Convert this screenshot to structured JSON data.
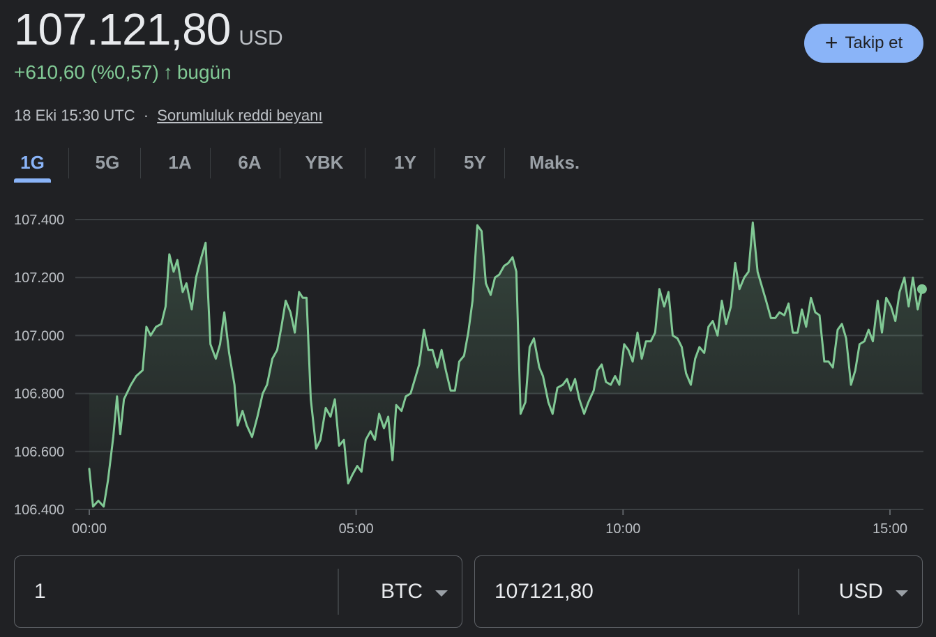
{
  "header": {
    "price": "107.121,80",
    "currency": "USD",
    "change": "+610,60 (%0,57)",
    "change_period": "bugün",
    "timestamp": "18 Eki 15:30 UTC",
    "separator": "·",
    "disclaimer_link": "Sorumluluk reddi beyanı",
    "follow_button": "Takip et",
    "plus_glyph": "+",
    "arrow_glyph": "↑"
  },
  "colors": {
    "accent": "#8ab4f8",
    "positive": "#81c995",
    "background": "#202124",
    "gridline": "#3c4043"
  },
  "tabs": [
    {
      "label": "1G",
      "active": true
    },
    {
      "label": "5G",
      "active": false
    },
    {
      "label": "1A",
      "active": false
    },
    {
      "label": "6A",
      "active": false
    },
    {
      "label": "YBK",
      "active": false
    },
    {
      "label": "1Y",
      "active": false
    },
    {
      "label": "5Y",
      "active": false
    },
    {
      "label": "Maks.",
      "active": false
    }
  ],
  "chart_data": {
    "type": "area",
    "x_unit": "hours (UTC) since 00:00",
    "x_range": [
      0,
      15.5
    ],
    "ylim": [
      106400,
      107400
    ],
    "y_ticks": [
      {
        "v": 107400,
        "label": "107.400"
      },
      {
        "v": 107200,
        "label": "107.200"
      },
      {
        "v": 107000,
        "label": "107.000"
      },
      {
        "v": 106800,
        "label": "106.800"
      },
      {
        "v": 106600,
        "label": "106.600"
      },
      {
        "v": 106400,
        "label": "106.400"
      }
    ],
    "x_ticks": [
      {
        "v": 0,
        "label": "00:00"
      },
      {
        "v": 5,
        "label": "05:00"
      },
      {
        "v": 10,
        "label": "10:00"
      },
      {
        "v": 15,
        "label": "15:00"
      }
    ],
    "grid": true,
    "points": [
      [
        0.0,
        106540
      ],
      [
        0.07,
        106410
      ],
      [
        0.17,
        106430
      ],
      [
        0.27,
        106410
      ],
      [
        0.35,
        106500
      ],
      [
        0.45,
        106650
      ],
      [
        0.52,
        106790
      ],
      [
        0.58,
        106660
      ],
      [
        0.65,
        106780
      ],
      [
        0.78,
        106830
      ],
      [
        0.88,
        106860
      ],
      [
        1.0,
        106880
      ],
      [
        1.07,
        107030
      ],
      [
        1.15,
        107000
      ],
      [
        1.25,
        107030
      ],
      [
        1.35,
        107040
      ],
      [
        1.43,
        107100
      ],
      [
        1.5,
        107280
      ],
      [
        1.58,
        107220
      ],
      [
        1.65,
        107260
      ],
      [
        1.75,
        107150
      ],
      [
        1.82,
        107180
      ],
      [
        1.92,
        107090
      ],
      [
        2.0,
        107200
      ],
      [
        2.1,
        107270
      ],
      [
        2.18,
        107320
      ],
      [
        2.27,
        106970
      ],
      [
        2.37,
        106920
      ],
      [
        2.45,
        106970
      ],
      [
        2.53,
        107080
      ],
      [
        2.62,
        106940
      ],
      [
        2.72,
        106830
      ],
      [
        2.78,
        106690
      ],
      [
        2.87,
        106740
      ],
      [
        2.95,
        106690
      ],
      [
        3.05,
        106650
      ],
      [
        3.15,
        106720
      ],
      [
        3.25,
        106800
      ],
      [
        3.33,
        106830
      ],
      [
        3.43,
        106920
      ],
      [
        3.52,
        106950
      ],
      [
        3.6,
        107030
      ],
      [
        3.68,
        107120
      ],
      [
        3.77,
        107080
      ],
      [
        3.85,
        107010
      ],
      [
        3.93,
        107150
      ],
      [
        4.0,
        107130
      ],
      [
        4.07,
        107130
      ],
      [
        4.15,
        106780
      ],
      [
        4.25,
        106610
      ],
      [
        4.33,
        106640
      ],
      [
        4.43,
        106750
      ],
      [
        4.52,
        106720
      ],
      [
        4.6,
        106780
      ],
      [
        4.68,
        106620
      ],
      [
        4.77,
        106640
      ],
      [
        4.85,
        106490
      ],
      [
        4.93,
        106520
      ],
      [
        5.02,
        106550
      ],
      [
        5.1,
        106530
      ],
      [
        5.18,
        106640
      ],
      [
        5.27,
        106670
      ],
      [
        5.35,
        106640
      ],
      [
        5.43,
        106730
      ],
      [
        5.52,
        106680
      ],
      [
        5.6,
        106720
      ],
      [
        5.68,
        106570
      ],
      [
        5.75,
        106760
      ],
      [
        5.85,
        106740
      ],
      [
        5.93,
        106790
      ],
      [
        6.02,
        106800
      ],
      [
        6.1,
        106850
      ],
      [
        6.18,
        106900
      ],
      [
        6.27,
        107020
      ],
      [
        6.35,
        106950
      ],
      [
        6.43,
        106950
      ],
      [
        6.52,
        106890
      ],
      [
        6.6,
        106950
      ],
      [
        6.68,
        106880
      ],
      [
        6.77,
        106810
      ],
      [
        6.85,
        106810
      ],
      [
        6.93,
        106910
      ],
      [
        7.02,
        106930
      ],
      [
        7.1,
        107010
      ],
      [
        7.18,
        107120
      ],
      [
        7.27,
        107380
      ],
      [
        7.35,
        107360
      ],
      [
        7.43,
        107180
      ],
      [
        7.52,
        107140
      ],
      [
        7.6,
        107200
      ],
      [
        7.68,
        107210
      ],
      [
        7.77,
        107240
      ],
      [
        7.85,
        107250
      ],
      [
        7.93,
        107270
      ],
      [
        8.0,
        107220
      ],
      [
        8.08,
        106730
      ],
      [
        8.17,
        106770
      ],
      [
        8.25,
        106960
      ],
      [
        8.33,
        106990
      ],
      [
        8.43,
        106890
      ],
      [
        8.5,
        106860
      ],
      [
        8.6,
        106770
      ],
      [
        8.68,
        106730
      ],
      [
        8.77,
        106820
      ],
      [
        8.87,
        106830
      ],
      [
        8.95,
        106850
      ],
      [
        9.02,
        106810
      ],
      [
        9.1,
        106850
      ],
      [
        9.18,
        106780
      ],
      [
        9.27,
        106730
      ],
      [
        9.35,
        106770
      ],
      [
        9.45,
        106810
      ],
      [
        9.52,
        106880
      ],
      [
        9.6,
        106900
      ],
      [
        9.68,
        106840
      ],
      [
        9.77,
        106830
      ],
      [
        9.85,
        106860
      ],
      [
        9.93,
        106830
      ],
      [
        10.02,
        106970
      ],
      [
        10.1,
        106950
      ],
      [
        10.18,
        106910
      ],
      [
        10.27,
        107010
      ],
      [
        10.35,
        106920
      ],
      [
        10.43,
        106980
      ],
      [
        10.52,
        106980
      ],
      [
        10.6,
        107010
      ],
      [
        10.68,
        107160
      ],
      [
        10.77,
        107100
      ],
      [
        10.85,
        107150
      ],
      [
        10.93,
        107000
      ],
      [
        11.02,
        106990
      ],
      [
        11.1,
        106960
      ],
      [
        11.18,
        106870
      ],
      [
        11.27,
        106830
      ],
      [
        11.35,
        106920
      ],
      [
        11.43,
        106960
      ],
      [
        11.52,
        106940
      ],
      [
        11.6,
        107030
      ],
      [
        11.68,
        107050
      ],
      [
        11.77,
        107000
      ],
      [
        11.85,
        107120
      ],
      [
        11.93,
        107040
      ],
      [
        12.02,
        107100
      ],
      [
        12.1,
        107250
      ],
      [
        12.18,
        107160
      ],
      [
        12.27,
        107200
      ],
      [
        12.35,
        107220
      ],
      [
        12.43,
        107390
      ],
      [
        12.52,
        107220
      ],
      [
        12.6,
        107170
      ],
      [
        12.68,
        107120
      ],
      [
        12.77,
        107060
      ],
      [
        12.85,
        107060
      ],
      [
        12.93,
        107080
      ],
      [
        13.02,
        107070
      ],
      [
        13.1,
        107110
      ],
      [
        13.18,
        107010
      ],
      [
        13.27,
        107010
      ],
      [
        13.35,
        107090
      ],
      [
        13.43,
        107030
      ],
      [
        13.52,
        107130
      ],
      [
        13.6,
        107080
      ],
      [
        13.68,
        107070
      ],
      [
        13.77,
        106910
      ],
      [
        13.85,
        106910
      ],
      [
        13.93,
        106890
      ],
      [
        14.02,
        107020
      ],
      [
        14.1,
        107040
      ],
      [
        14.18,
        106990
      ],
      [
        14.27,
        106830
      ],
      [
        14.35,
        106880
      ],
      [
        14.43,
        106970
      ],
      [
        14.52,
        106980
      ],
      [
        14.6,
        107020
      ],
      [
        14.68,
        106980
      ],
      [
        14.77,
        107120
      ],
      [
        14.85,
        107010
      ],
      [
        14.93,
        107130
      ],
      [
        15.02,
        107100
      ],
      [
        15.1,
        107050
      ],
      [
        15.18,
        107150
      ],
      [
        15.27,
        107200
      ],
      [
        15.35,
        107100
      ],
      [
        15.43,
        107200
      ],
      [
        15.52,
        107090
      ],
      [
        15.6,
        107160
      ]
    ]
  },
  "converter": {
    "from_value": "1",
    "from_unit": "BTC",
    "to_value": "107121,80",
    "to_unit": "USD"
  }
}
